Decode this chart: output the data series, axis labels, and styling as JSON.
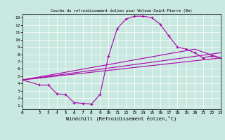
{
  "title": "Courbe du refroidissement éolien pour Woluwe-Saint-Pierre (Be)",
  "xlabel": "Windchill (Refroidissement éolien,°C)",
  "bg_color": "#c8e8e0",
  "line_color": "#aa00aa",
  "xlim": [
    0,
    23
  ],
  "ylim": [
    0.5,
    13.5
  ],
  "xticks": [
    0,
    2,
    3,
    4,
    5,
    6,
    7,
    8,
    9,
    10,
    11,
    12,
    13,
    14,
    15,
    16,
    17,
    18,
    19,
    20,
    21,
    22,
    23
  ],
  "yticks": [
    1,
    2,
    3,
    4,
    5,
    6,
    7,
    8,
    9,
    10,
    11,
    12,
    13
  ],
  "curve1_x": [
    0,
    2,
    3,
    4,
    5,
    6,
    7,
    8,
    9,
    10,
    11,
    12,
    13,
    14,
    15,
    16,
    17,
    18,
    19,
    20,
    21,
    22,
    23
  ],
  "curve1_y": [
    4.5,
    3.8,
    3.8,
    2.6,
    2.5,
    1.4,
    1.3,
    1.2,
    2.5,
    7.8,
    11.5,
    12.8,
    13.2,
    13.2,
    13.0,
    12.1,
    10.5,
    9.0,
    8.7,
    8.2,
    7.5,
    7.8,
    7.5
  ],
  "curve2_x": [
    0,
    23
  ],
  "curve2_y": [
    4.5,
    7.5
  ],
  "curve3_x": [
    0,
    23
  ],
  "curve3_y": [
    4.5,
    8.2
  ],
  "curve4_x": [
    0,
    20,
    23
  ],
  "curve4_y": [
    4.5,
    8.7,
    7.5
  ]
}
